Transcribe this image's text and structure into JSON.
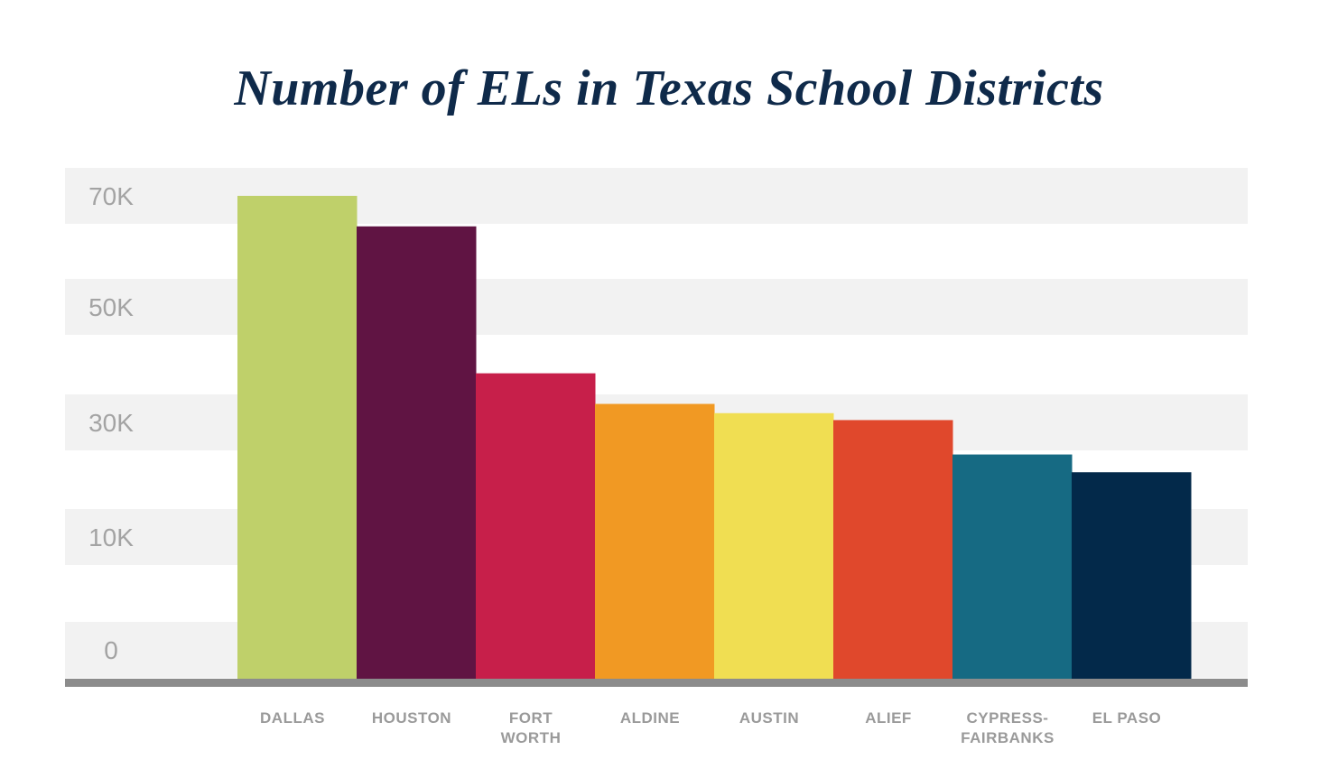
{
  "chart_data": {
    "type": "bar",
    "title": "Number of ELs in Texas School Districts",
    "xlabel": "",
    "ylabel": "",
    "categories": [
      [
        "DALLAS"
      ],
      [
        "HOUSTON"
      ],
      [
        "FORT",
        "WORTH"
      ],
      [
        "ALDINE"
      ],
      [
        "AUSTIN"
      ],
      [
        "ALIEF"
      ],
      [
        "CYPRESS-",
        "FAIRBANKS"
      ],
      [
        "EL PASO"
      ]
    ],
    "values": [
      70000,
      64500,
      38500,
      33200,
      31600,
      30400,
      24400,
      21300
    ],
    "colors": [
      "#bfd06a",
      "#601443",
      "#c71f4a",
      "#f19923",
      "#f0de52",
      "#e0482c",
      "#166a83",
      "#03294a"
    ],
    "ytick_labels": [
      {
        "value": 0,
        "label": "0"
      },
      {
        "value": 10000,
        "label": "10K"
      },
      {
        "value": 30000,
        "label": "30K"
      },
      {
        "value": 50000,
        "label": "50K"
      },
      {
        "value": 70000,
        "label": "70K"
      }
    ],
    "ylim": [
      0,
      70000
    ],
    "band_color": "#f2f2f2",
    "baseline_color": "#8c8c8c",
    "grid": false,
    "legend": "none"
  }
}
